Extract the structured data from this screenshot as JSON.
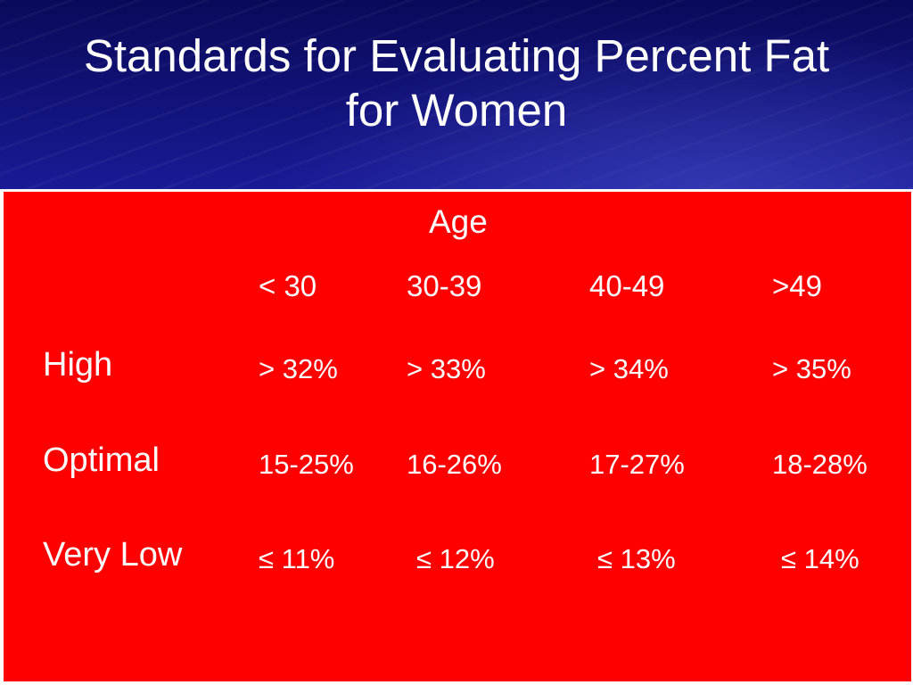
{
  "slide": {
    "title_line1": "Standards for Evaluating Percent Fat",
    "title_line2": "for Women"
  },
  "table": {
    "group_header": "Age",
    "columns": [
      "< 30",
      "30-39",
      "40-49",
      ">49"
    ],
    "rows": [
      {
        "label": "High",
        "values": [
          "> 32%",
          "> 33%",
          "> 34%",
          "> 35%"
        ]
      },
      {
        "label": "Optimal",
        "values": [
          "15-25%",
          "16-26%",
          "17-27%",
          "18-28%"
        ]
      },
      {
        "label": "Very Low",
        "values": [
          "≤ 11%",
          "≤ 12%",
          "≤ 13%",
          "≤ 14%"
        ]
      }
    ]
  },
  "colors": {
    "header_background": "#12127a",
    "panel_background": "#ff0000",
    "text": "#ffffff"
  }
}
